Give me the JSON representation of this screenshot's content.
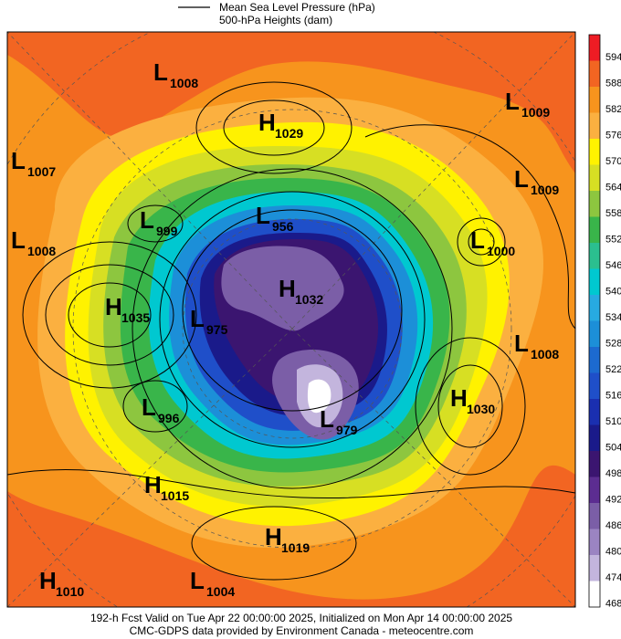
{
  "header": {
    "line1": "Mean Sea Level Pressure (hPa)",
    "line2": "500-hPa Heights (dam)"
  },
  "centers": [
    {
      "kind": "L",
      "value": 1008
    },
    {
      "kind": "H",
      "value": 1029
    },
    {
      "kind": "L",
      "value": 1009
    },
    {
      "kind": "L",
      "value": 1007
    },
    {
      "kind": "L",
      "value": 1009
    },
    {
      "kind": "L",
      "value": 999
    },
    {
      "kind": "L",
      "value": 956
    },
    {
      "kind": "L",
      "value": 1000
    },
    {
      "kind": "L",
      "value": 1008
    },
    {
      "kind": "H",
      "value": 1035
    },
    {
      "kind": "H",
      "value": 1032
    },
    {
      "kind": "L",
      "value": 975
    },
    {
      "kind": "L",
      "value": 1008
    },
    {
      "kind": "H",
      "value": 1030
    },
    {
      "kind": "L",
      "value": 996
    },
    {
      "kind": "L",
      "value": 979
    },
    {
      "kind": "H",
      "value": 1015
    },
    {
      "kind": "H",
      "value": 1019
    },
    {
      "kind": "H",
      "value": 1010
    },
    {
      "kind": "L",
      "value": 1004
    }
  ],
  "colorbar": {
    "levels": [
      594,
      588,
      582,
      576,
      570,
      564,
      558,
      552,
      546,
      540,
      534,
      528,
      522,
      516,
      510,
      504,
      498,
      492,
      486,
      480,
      474,
      468
    ],
    "colors": [
      "#ee1c24",
      "#f26522",
      "#f7941d",
      "#fbb040",
      "#fff200",
      "#d7df23",
      "#8dc63f",
      "#39b54a",
      "#2bbf8f",
      "#00c8d0",
      "#27aae1",
      "#1c8fd8",
      "#1c6ad0",
      "#1f4fc9",
      "#1a2fb0",
      "#1a1a8a",
      "#3b1570",
      "#5c2d91",
      "#7b5ea7",
      "#9b84c2",
      "#c3b5dd",
      "#ffffff"
    ]
  },
  "footer": {
    "line1": "192-h Fcst Valid on Tue Apr 22 00:00:00 2025, Initialized on Mon Apr 14 00:00:00 2025",
    "line2": "CMC-GDPS data provided by Environment Canada - meteocentre.com"
  }
}
